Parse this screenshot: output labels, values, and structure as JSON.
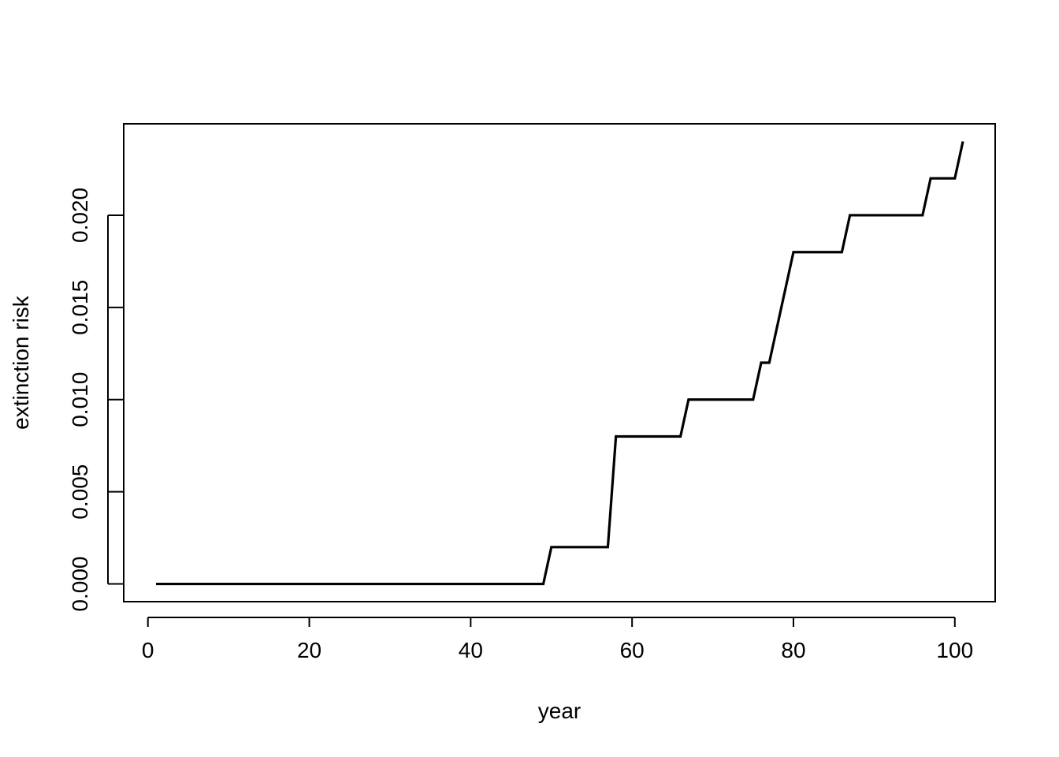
{
  "chart_data": {
    "type": "line",
    "title": "",
    "xlabel": "year",
    "ylabel": "extinction risk",
    "xlim": [
      -3.0,
      105.0
    ],
    "ylim": [
      -0.00096,
      0.02496
    ],
    "x_ticks": [
      0,
      20,
      40,
      60,
      80,
      100
    ],
    "x_tick_labels": [
      "0",
      "20",
      "40",
      "60",
      "80",
      "100"
    ],
    "y_ticks": [
      0.0,
      0.005,
      0.01,
      0.015,
      0.02
    ],
    "y_tick_labels": [
      "0.000",
      "0.005",
      "0.010",
      "0.015",
      "0.020"
    ],
    "grid": false,
    "line_color": "#000000",
    "series": [
      {
        "x": [
          1,
          49,
          50,
          57,
          58,
          66,
          67,
          75,
          76,
          77,
          78,
          79,
          80,
          86,
          87,
          96,
          97,
          100,
          101
        ],
        "y": [
          0.0,
          0.0,
          0.002,
          0.002,
          0.008,
          0.008,
          0.01,
          0.01,
          0.012,
          0.012,
          0.014,
          0.016,
          0.018,
          0.018,
          0.02,
          0.02,
          0.022,
          0.022,
          0.024
        ]
      }
    ]
  }
}
